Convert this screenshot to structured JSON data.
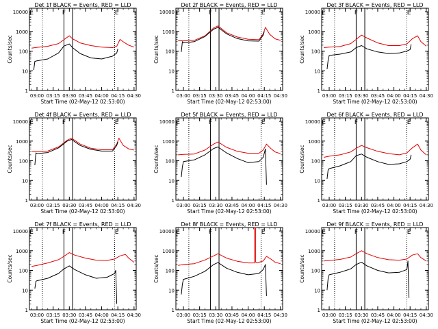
{
  "figure": {
    "background": "#ffffff",
    "colors": {
      "events": "#000000",
      "lld": "#e00000",
      "axis": "#000000"
    }
  },
  "chart_data": [
    {
      "type": "line",
      "title": "Det 1f BLACK = Events, RED = LLD",
      "xlabel": "Start Time (02-May-12 02:53:00)",
      "ylabel": "Counts/sec",
      "xticks": [
        "03:00",
        "03:15",
        "03:30",
        "03:45",
        "04:00",
        "04:15",
        "04:30"
      ],
      "yticks": [
        "1",
        "10",
        "100",
        "1000",
        "10000"
      ],
      "xlim": [
        "02:53",
        "04:32"
      ],
      "ylim": [
        1,
        15000
      ],
      "yscale": "log",
      "markers": [
        "E",
        "F",
        "E"
      ],
      "series": [
        {
          "color": "#e00000",
          "x": [
            "02:55",
            "03:00",
            "03:10",
            "03:20",
            "03:25",
            "03:30",
            "03:33",
            "03:40",
            "03:50",
            "04:00",
            "04:10",
            "04:14",
            "04:17",
            "04:21",
            "04:25",
            "04:30"
          ],
          "y": [
            140,
            155,
            175,
            240,
            380,
            600,
            420,
            260,
            190,
            160,
            150,
            175,
            390,
            270,
            200,
            160
          ]
        },
        {
          "color": "#000000",
          "x": [
            "02:57",
            "02:58",
            "03:00",
            "03:10",
            "03:20",
            "03:25",
            "03:30",
            "03:33",
            "03:40",
            "03:50",
            "04:00",
            "04:10",
            "04:14",
            "04:15"
          ],
          "y": [
            11,
            30,
            32,
            40,
            80,
            180,
            230,
            150,
            75,
            45,
            40,
            55,
            80,
            130
          ]
        }
      ]
    },
    {
      "type": "line",
      "title": "Det 2f BLACK = Events, RED = LLD",
      "xlabel": "Start Time (02-May-12 02:53:00)",
      "ylabel": "Counts/sec",
      "xticks": [
        "03:00",
        "03:15",
        "03:30",
        "03:45",
        "04:00",
        "04:15",
        "04:30"
      ],
      "yticks": [
        "1",
        "10",
        "100",
        "1000",
        "10000"
      ],
      "xlim": [
        "02:53",
        "04:32"
      ],
      "ylim": [
        1,
        15000
      ],
      "yscale": "log",
      "markers": [
        "E",
        "F",
        "E"
      ],
      "series": [
        {
          "color": "#e00000",
          "x": [
            "02:55",
            "03:00",
            "03:10",
            "03:20",
            "03:28",
            "03:32",
            "03:40",
            "03:50",
            "04:00",
            "04:10",
            "04:14",
            "04:16",
            "04:20",
            "04:25",
            "04:30"
          ],
          "y": [
            340,
            330,
            350,
            600,
            1500,
            1900,
            850,
            520,
            400,
            380,
            750,
            1600,
            700,
            420,
            350
          ]
        },
        {
          "color": "#000000",
          "x": [
            "02:58",
            "02:59",
            "03:00",
            "03:10",
            "03:20",
            "03:28",
            "03:32",
            "03:40",
            "03:50",
            "04:00",
            "04:10",
            "04:14",
            "04:15"
          ],
          "y": [
            90,
            300,
            260,
            300,
            550,
            1300,
            1600,
            750,
            430,
            330,
            320,
            650,
            1000
          ]
        }
      ]
    },
    {
      "type": "line",
      "title": "Det 3f BLACK = Events, RED = LLD",
      "xlabel": "Start Time (02-May-12 02:53:00)",
      "ylabel": "Counts/sec",
      "xticks": [
        "03:00",
        "03:15",
        "03:30",
        "03:45",
        "04:00",
        "04:15",
        "04:30"
      ],
      "yticks": [
        "1",
        "10",
        "100",
        "1000",
        "10000"
      ],
      "xlim": [
        "02:53",
        "04:32"
      ],
      "ylim": [
        1,
        15000
      ],
      "yscale": "log",
      "markers": [
        "E",
        "F",
        "E"
      ],
      "series": [
        {
          "color": "#e00000",
          "x": [
            "02:55",
            "03:00",
            "03:10",
            "03:20",
            "03:25",
            "03:30",
            "03:35",
            "03:45",
            "03:55",
            "04:05",
            "04:12",
            "04:17",
            "04:22",
            "04:25",
            "04:30"
          ],
          "y": [
            150,
            160,
            170,
            240,
            390,
            650,
            460,
            260,
            190,
            190,
            230,
            420,
            600,
            300,
            180
          ]
        },
        {
          "color": "#000000",
          "x": [
            "02:58",
            "02:59",
            "03:00",
            "03:10",
            "03:20",
            "03:25",
            "03:30",
            "03:35",
            "03:45",
            "03:55",
            "04:05",
            "04:12",
            "04:15",
            "04:16"
          ],
          "y": [
            12,
            35,
            60,
            70,
            90,
            150,
            190,
            130,
            90,
            75,
            80,
            100,
            120,
            220
          ]
        }
      ]
    },
    {
      "type": "line",
      "title": "Det 4f BLACK = Events, RED = LLD",
      "xlabel": "Start Time (02-May-12 02:53:00)",
      "ylabel": "Counts/sec",
      "xticks": [
        "03:00",
        "03:15",
        "03:30",
        "03:45",
        "04:00",
        "04:15",
        "04:30"
      ],
      "yticks": [
        "1",
        "10",
        "100",
        "1000",
        "10000"
      ],
      "xlim": [
        "02:53",
        "04:32"
      ],
      "ylim": [
        1,
        15000
      ],
      "yscale": "log",
      "markers": [
        "E",
        "F",
        "E"
      ],
      "series": [
        {
          "color": "#e00000",
          "x": [
            "02:55",
            "03:00",
            "03:10",
            "03:20",
            "03:28",
            "03:32",
            "03:40",
            "03:50",
            "04:00",
            "04:10",
            "04:14",
            "04:16",
            "04:20",
            "04:25",
            "04:30"
          ],
          "y": [
            300,
            290,
            310,
            500,
            1100,
            1400,
            700,
            430,
            360,
            360,
            700,
            1400,
            600,
            400,
            350
          ]
        },
        {
          "color": "#000000",
          "x": [
            "02:58",
            "02:59",
            "03:00",
            "03:10",
            "03:20",
            "03:28",
            "03:32",
            "03:40",
            "03:50",
            "04:00",
            "04:10",
            "04:14",
            "04:15"
          ],
          "y": [
            60,
            250,
            230,
            260,
            450,
            1000,
            1200,
            600,
            380,
            310,
            310,
            600,
            900
          ]
        }
      ]
    },
    {
      "type": "line",
      "title": "Det 5f BLACK = Events, RED = LLD",
      "xlabel": "Start Time (02-May-12 02:53:00)",
      "ylabel": "Counts/sec",
      "xticks": [
        "03:00",
        "03:15",
        "03:30",
        "03:45",
        "04:00",
        "04:15",
        "04:30"
      ],
      "yticks": [
        "1",
        "10",
        "100",
        "1000",
        "10000"
      ],
      "xlim": [
        "02:53",
        "04:32"
      ],
      "ylim": [
        1,
        15000
      ],
      "yscale": "log",
      "markers": [
        "E",
        "F",
        "E"
      ],
      "series": [
        {
          "color": "#e00000",
          "x": [
            "02:55",
            "03:00",
            "03:10",
            "03:20",
            "03:28",
            "03:32",
            "03:40",
            "03:50",
            "04:00",
            "04:10",
            "04:14",
            "04:17",
            "04:21",
            "04:25",
            "04:30"
          ],
          "y": [
            200,
            210,
            220,
            350,
            700,
            900,
            480,
            300,
            240,
            240,
            350,
            700,
            420,
            280,
            230
          ]
        },
        {
          "color": "#000000",
          "x": [
            "02:58",
            "02:59",
            "03:00",
            "03:10",
            "03:20",
            "03:28",
            "03:32",
            "03:40",
            "03:50",
            "04:00",
            "04:10",
            "04:14",
            "04:16",
            "04:17"
          ],
          "y": [
            15,
            50,
            90,
            110,
            200,
            420,
            500,
            250,
            130,
            80,
            90,
            150,
            400,
            6
          ]
        }
      ]
    },
    {
      "type": "line",
      "title": "Det 6f BLACK = Events, RED = LLD",
      "xlabel": "Start Time (02-May-12 02:53:00)",
      "ylabel": "Counts/sec",
      "xticks": [
        "03:00",
        "03:15",
        "03:30",
        "03:45",
        "04:00",
        "04:15",
        "04:30"
      ],
      "yticks": [
        "1",
        "10",
        "100",
        "1000",
        "10000"
      ],
      "xlim": [
        "02:53",
        "04:32"
      ],
      "ylim": [
        1,
        15000
      ],
      "yscale": "log",
      "markers": [
        "E",
        "F",
        "E"
      ],
      "series": [
        {
          "color": "#e00000",
          "x": [
            "02:55",
            "03:00",
            "03:10",
            "03:20",
            "03:25",
            "03:30",
            "03:35",
            "03:45",
            "03:55",
            "04:05",
            "04:12",
            "04:17",
            "04:22",
            "04:25",
            "04:30"
          ],
          "y": [
            150,
            170,
            200,
            280,
            430,
            600,
            460,
            300,
            230,
            200,
            250,
            450,
            700,
            350,
            200
          ]
        },
        {
          "color": "#000000",
          "x": [
            "02:58",
            "02:59",
            "03:00",
            "03:10",
            "03:20",
            "03:25",
            "03:30",
            "03:35",
            "03:45",
            "03:55",
            "04:05",
            "04:12",
            "04:15",
            "04:16"
          ],
          "y": [
            12,
            35,
            40,
            55,
            90,
            180,
            220,
            150,
            90,
            65,
            70,
            90,
            120,
            200
          ]
        }
      ]
    },
    {
      "type": "line",
      "title": "Det 7f BLACK = Events, RED = LLD",
      "xlabel": "Start Time (02-May-12 02:53:00)",
      "ylabel": "Counts/sec",
      "xticks": [
        "03:00",
        "03:15",
        "03:30",
        "03:45",
        "04:00",
        "04:15",
        "04:30"
      ],
      "yticks": [
        "1",
        "10",
        "100",
        "1000",
        "10000"
      ],
      "xlim": [
        "02:53",
        "04:32"
      ],
      "ylim": [
        1,
        15000
      ],
      "yscale": "log",
      "markers": [
        "E",
        "F",
        "E"
      ],
      "series": [
        {
          "color": "#e00000",
          "x": [
            "02:55",
            "03:00",
            "03:10",
            "03:20",
            "03:25",
            "03:30",
            "03:35",
            "03:45",
            "03:55",
            "04:05",
            "04:12",
            "04:17",
            "04:22",
            "04:25",
            "04:30"
          ],
          "y": [
            160,
            180,
            240,
            350,
            520,
            800,
            600,
            420,
            330,
            320,
            380,
            550,
            650,
            420,
            260
          ]
        },
        {
          "color": "#000000",
          "x": [
            "02:58",
            "02:59",
            "03:00",
            "03:10",
            "03:20",
            "03:25",
            "03:30",
            "03:35",
            "03:45",
            "03:55",
            "04:05",
            "04:12",
            "04:13",
            "04:14"
          ],
          "y": [
            12,
            28,
            30,
            40,
            70,
            120,
            170,
            110,
            60,
            40,
            45,
            70,
            100,
            2
          ]
        }
      ]
    },
    {
      "type": "line",
      "title": "Det 8f BLACK = Events, RED = LLD",
      "xlabel": "Start Time (02-May-12 02:53:00)",
      "ylabel": "Counts/sec",
      "xticks": [
        "03:00",
        "03:15",
        "03:30",
        "03:45",
        "04:00",
        "04:15",
        "04:30"
      ],
      "yticks": [
        "1",
        "10",
        "100",
        "1000",
        "10000"
      ],
      "xlim": [
        "02:53",
        "04:32"
      ],
      "ylim": [
        1,
        15000
      ],
      "yscale": "log",
      "markers": [
        "E",
        "F",
        "E"
      ],
      "series": [
        {
          "color": "#e00000",
          "x": [
            "02:55",
            "03:00",
            "03:10",
            "03:20",
            "03:28",
            "03:32",
            "03:40",
            "03:50",
            "04:00",
            "04:06",
            "04:06",
            "04:07",
            "04:07",
            "04:08",
            "04:14",
            "04:17",
            "04:21",
            "04:25",
            "04:30"
          ],
          "y": [
            180,
            200,
            220,
            340,
            550,
            700,
            420,
            290,
            240,
            240,
            15000,
            15000,
            260,
            240,
            300,
            520,
            380,
            260,
            220
          ]
        },
        {
          "color": "#000000",
          "x": [
            "02:58",
            "02:59",
            "03:00",
            "03:10",
            "03:20",
            "03:28",
            "03:32",
            "03:40",
            "03:50",
            "04:00",
            "04:10",
            "04:14",
            "04:16",
            "04:17"
          ],
          "y": [
            6,
            20,
            35,
            50,
            90,
            200,
            250,
            130,
            80,
            60,
            70,
            110,
            200,
            5
          ]
        }
      ]
    },
    {
      "type": "line",
      "title": "Det 9f BLACK = Events, RED = LLD",
      "xlabel": "Start Time (02-May-12 02:53:00)",
      "ylabel": "Counts/sec",
      "xticks": [
        "03:00",
        "03:15",
        "03:30",
        "03:45",
        "04:00",
        "04:15",
        "04:30"
      ],
      "yticks": [
        "1",
        "10",
        "100",
        "1000",
        "10000"
      ],
      "xlim": [
        "02:53",
        "04:32"
      ],
      "ylim": [
        1,
        15000
      ],
      "yscale": "log",
      "markers": [
        "E",
        "F",
        "E"
      ],
      "series": [
        {
          "color": "#e00000",
          "x": [
            "02:55",
            "03:00",
            "03:10",
            "03:20",
            "03:25",
            "03:30",
            "03:35",
            "03:45",
            "03:55",
            "04:05",
            "04:12",
            "04:17",
            "04:22",
            "04:25",
            "04:30"
          ],
          "y": [
            300,
            320,
            360,
            480,
            700,
            1000,
            700,
            450,
            350,
            330,
            380,
            600,
            700,
            450,
            300
          ]
        },
        {
          "color": "#000000",
          "x": [
            "02:58",
            "02:59",
            "03:00",
            "03:10",
            "03:20",
            "03:25",
            "03:30",
            "03:35",
            "03:45",
            "03:55",
            "04:05",
            "04:12",
            "04:13",
            "04:14"
          ],
          "y": [
            10,
            40,
            60,
            80,
            120,
            200,
            260,
            170,
            100,
            75,
            80,
            110,
            300,
            4
          ]
        }
      ]
    }
  ]
}
